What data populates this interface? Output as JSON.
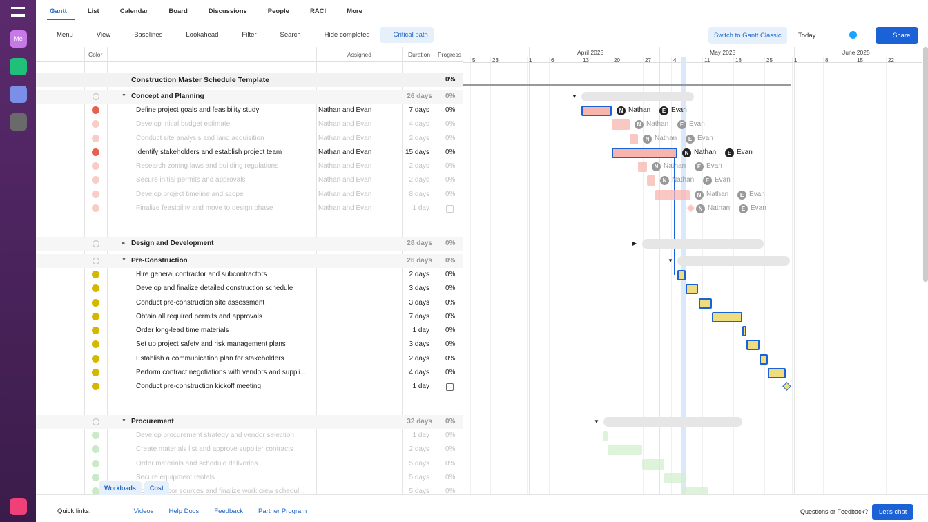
{
  "nav": {
    "tabs": [
      "Gantt",
      "List",
      "Calendar",
      "Board",
      "Discussions",
      "People",
      "RACI",
      "More"
    ]
  },
  "toolbar": {
    "left": [
      "Menu",
      "View",
      "Baselines",
      "Lookahead",
      "Filter",
      "Search",
      "Hide completed",
      "Critical path"
    ],
    "switch": "Switch to Gantt Classic",
    "today": "Today",
    "share": "Share"
  },
  "sidebar": {
    "me": "Me"
  },
  "grid": {
    "headers": {
      "color": "Color",
      "assigned": "Assigned",
      "duration": "Duration",
      "progress": "Progress"
    }
  },
  "timeline": {
    "months": [
      "April 2025",
      "May 2025",
      "June 2025"
    ],
    "days": [
      "5",
      "23",
      "1",
      "6",
      "13",
      "20",
      "27",
      "4",
      "11",
      "18",
      "25",
      "1",
      "8",
      "15",
      "22"
    ]
  },
  "project": {
    "name": "Construction Master Schedule Template",
    "progress": "0%"
  },
  "groups": [
    {
      "name": "Concept and Planning",
      "duration": "26 days",
      "progress": "0%",
      "color": "#e8604f",
      "dim_color": "#f7cdc6",
      "bar": "#f8b5ad",
      "expanded": true,
      "tasks": [
        {
          "name": "Define project goals and feasibility study",
          "assigned": "Nathan and Evan",
          "duration": "7 days",
          "progress": "0%",
          "assignees": [
            {
              "initial": "N",
              "name": "Nathan"
            },
            {
              "initial": "E",
              "name": "Evan"
            }
          ]
        },
        {
          "name": "Develop initial budget estimate",
          "assigned": "Nathan and Evan",
          "duration": "4 days",
          "progress": "0%",
          "dimmed": true,
          "assignees": [
            {
              "initial": "N",
              "name": "Nathan"
            },
            {
              "initial": "E",
              "name": "Evan"
            }
          ]
        },
        {
          "name": "Conduct site analysis and land acquisition",
          "assigned": "Nathan and Evan",
          "duration": "2 days",
          "progress": "0%",
          "dimmed": true,
          "assignees": [
            {
              "initial": "N",
              "name": "Nathan"
            },
            {
              "initial": "E",
              "name": "Evan"
            }
          ]
        },
        {
          "name": "Identify stakeholders and establish project team",
          "assigned": "Nathan and Evan",
          "duration": "15 days",
          "progress": "0%",
          "assignees": [
            {
              "initial": "N",
              "name": "Nathan"
            },
            {
              "initial": "E",
              "name": "Evan"
            }
          ]
        },
        {
          "name": "Research zoning laws and building regulations",
          "assigned": "Nathan and Evan",
          "duration": "2 days",
          "progress": "0%",
          "dimmed": true,
          "assignees": [
            {
              "initial": "N",
              "name": "Nathan"
            },
            {
              "initial": "E",
              "name": "Evan"
            }
          ]
        },
        {
          "name": "Secure initial permits and approvals",
          "assigned": "Nathan and Evan",
          "duration": "2 days",
          "progress": "0%",
          "dimmed": true,
          "assignees": [
            {
              "initial": "N",
              "name": "Nathan"
            },
            {
              "initial": "E",
              "name": "Evan"
            }
          ]
        },
        {
          "name": "Develop project timeline and scope",
          "assigned": "Nathan and Evan",
          "duration": "8 days",
          "progress": "0%",
          "dimmed": true,
          "assignees": [
            {
              "initial": "N",
              "name": "Nathan"
            },
            {
              "initial": "E",
              "name": "Evan"
            }
          ]
        },
        {
          "name": "Finalize feasibility and move to design phase",
          "assigned": "Nathan and Evan",
          "duration": "1 day",
          "dimmed": true,
          "milestone": true,
          "assignees": [
            {
              "initial": "N",
              "name": "Nathan"
            },
            {
              "initial": "E",
              "name": "Evan"
            }
          ]
        }
      ]
    },
    {
      "name": "Design and Development",
      "duration": "28 days",
      "progress": "0%",
      "color": "#cccccc",
      "expanded": false,
      "tasks": []
    },
    {
      "name": "Pre-Construction",
      "duration": "26 days",
      "progress": "0%",
      "color": "#d4b800",
      "dim_color": "#efe3a0",
      "bar": "#eedc7e",
      "expanded": true,
      "tasks": [
        {
          "name": "Hire general contractor and subcontractors",
          "duration": "2 days",
          "progress": "0%"
        },
        {
          "name": "Develop and finalize detailed construction schedule",
          "duration": "3 days",
          "progress": "0%"
        },
        {
          "name": "Conduct pre-construction site assessment",
          "duration": "3 days",
          "progress": "0%"
        },
        {
          "name": "Obtain all required permits and approvals",
          "duration": "7 days",
          "progress": "0%"
        },
        {
          "name": "Order long-lead time materials",
          "duration": "1 day",
          "progress": "0%"
        },
        {
          "name": "Set up project safety and risk management plans",
          "duration": "3 days",
          "progress": "0%"
        },
        {
          "name": "Establish a communication plan for stakeholders",
          "duration": "2 days",
          "progress": "0%"
        },
        {
          "name": "Perform contract negotiations with vendors and suppli...",
          "duration": "4 days",
          "progress": "0%"
        },
        {
          "name": "Conduct pre-construction kickoff meeting",
          "duration": "1 day",
          "milestone": true
        }
      ]
    },
    {
      "name": "Procurement",
      "duration": "32 days",
      "progress": "0%",
      "color": "#5cc35a",
      "dim_color": "#c8ebc5",
      "bar": "#d2f0cf",
      "expanded": true,
      "tasks": [
        {
          "name": "Develop procurement strategy and vendor selection",
          "duration": "1 day",
          "progress": "0%",
          "dimmed": true
        },
        {
          "name": "Create materials list and approve supplier contracts",
          "duration": "2 days",
          "progress": "0%",
          "dimmed": true
        },
        {
          "name": "Order materials and schedule deliveries",
          "duration": "5 days",
          "progress": "0%",
          "dimmed": true
        },
        {
          "name": "Secure equipment rentals",
          "duration": "5 days",
          "progress": "0%",
          "dimmed": true
        },
        {
          "name": "Confirm labor sources and finalize work crew schedul...",
          "duration": "5 days",
          "progress": "0%",
          "dimmed": true
        }
      ]
    }
  ],
  "bottom": {
    "tabs": [
      "Workloads",
      "Cost"
    ],
    "quick_links_label": "Quick links:",
    "links": [
      "Videos",
      "Help Docs",
      "Feedback",
      "Partner Program"
    ],
    "question": "Questions or Feedback?",
    "chat": "Let's chat"
  }
}
